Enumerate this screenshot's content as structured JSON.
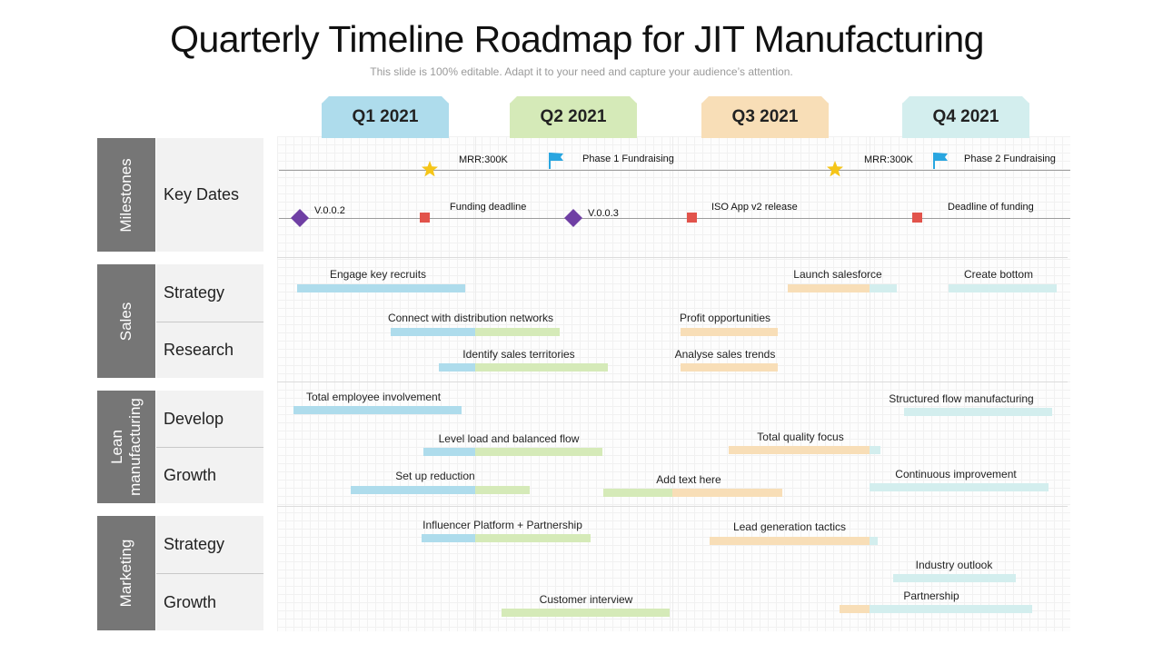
{
  "title": "Quarterly Timeline Roadmap for JIT Manufacturing",
  "subtitle": "This slide is 100% editable. Adapt it to your need and capture your audience’s attention.",
  "colors": {
    "q1": "#aedcec",
    "q2": "#d5eab8",
    "q3": "#f8deb7",
    "q4": "#d3eeee",
    "star": "#f5c518",
    "flag": "#29a6e0",
    "diamond": "#6f3fa4",
    "square": "#e2534b"
  },
  "quarters": [
    "Q1 2021",
    "Q2 2021",
    "Q3 2021",
    "Q4 2021"
  ],
  "categories": {
    "milestones": "Milestones",
    "sales": "Sales",
    "lean": "Lean manufacturing",
    "marketing": "Marketing"
  },
  "rows": {
    "key_dates": "Key Dates",
    "sales_strategy": "Strategy",
    "sales_research": "Research",
    "lean_develop": "Develop",
    "lean_growth": "Growth",
    "marketing_strategy": "Strategy",
    "marketing_growth": "Growth"
  },
  "milestones": {
    "star1": "MRR:300K",
    "flag1": "Phase 1 Fundraising",
    "star2": "MRR:300K",
    "flag2": "Phase 2 Fundraising",
    "diamond1": "V.0.0.2",
    "square1": "Funding deadline",
    "diamond2": "V.0.0.3",
    "square2": "ISO App v2 release",
    "square3": "Deadline of funding"
  },
  "tasks": [
    {
      "label": "Engage key recruits"
    },
    {
      "label": "Launch salesforce"
    },
    {
      "label": "Create bottom"
    },
    {
      "label": "Connect with distribution networks"
    },
    {
      "label": "Profit opportunities"
    },
    {
      "label": "Identify sales territories"
    },
    {
      "label": "Analyse sales trends"
    },
    {
      "label": "Total employee involvement"
    },
    {
      "label": "Structured flow manufacturing"
    },
    {
      "label": "Level load and balanced flow"
    },
    {
      "label": "Total quality focus"
    },
    {
      "label": "Set up reduction"
    },
    {
      "label": "Add text here"
    },
    {
      "label": "Continuous improvement"
    },
    {
      "label": "Influencer Platform + Partnership"
    },
    {
      "label": "Lead generation tactics"
    },
    {
      "label": "Industry outlook"
    },
    {
      "label": "Customer interview"
    },
    {
      "label": "Partnership"
    }
  ]
}
